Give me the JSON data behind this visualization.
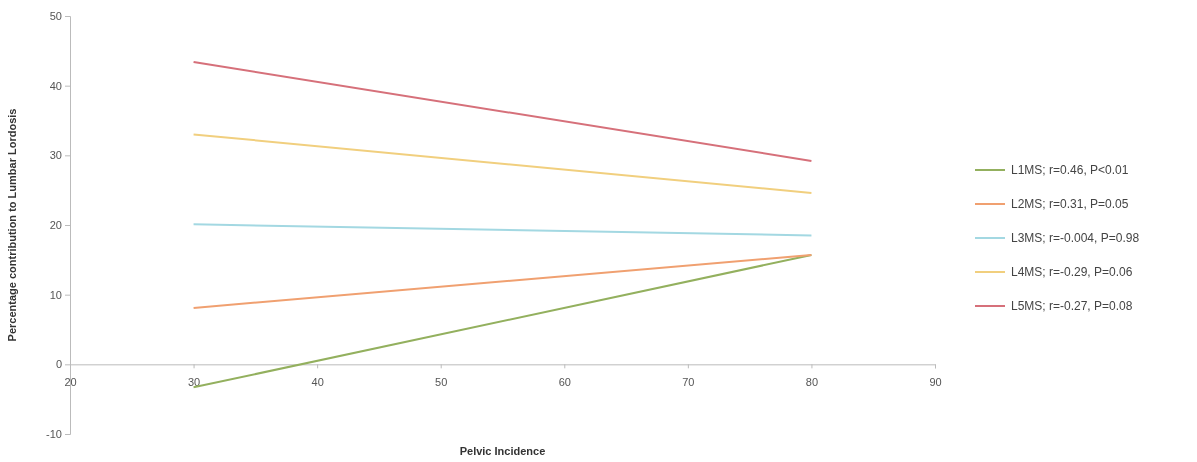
{
  "chart_data": {
    "type": "line",
    "xlabel": "Pelvic Incidence",
    "ylabel": "Percentage contribution to Lumbar Lordosis",
    "x": [
      30,
      80
    ],
    "series": [
      {
        "name": "L1MS; r=0.46, P<0.01",
        "color": "#93b05e",
        "values": [
          -3.3,
          15.7
        ]
      },
      {
        "name": "L2MS; r=0.31, P=0.05",
        "color": "#f0a070",
        "values": [
          8.1,
          15.7
        ]
      },
      {
        "name": "L3MS; r=-0.004, P=0.98",
        "color": "#a3d8e2",
        "values": [
          20.1,
          18.5
        ]
      },
      {
        "name": "L4MS; r=-0.29, P=0.06",
        "color": "#f1cf7e",
        "values": [
          33.0,
          24.6
        ]
      },
      {
        "name": "L5MS; r=-0.27, P=0.08",
        "color": "#d6707a",
        "values": [
          43.4,
          29.2
        ]
      }
    ],
    "xlim": [
      20,
      90
    ],
    "xticks": [
      20,
      30,
      40,
      50,
      60,
      70,
      80,
      90
    ],
    "ylim": [
      -10,
      50
    ],
    "yticks": [
      -10,
      0,
      10,
      20,
      30,
      40,
      50
    ],
    "legend": "right",
    "marker": "none",
    "line_style": "solid",
    "grid": false
  }
}
